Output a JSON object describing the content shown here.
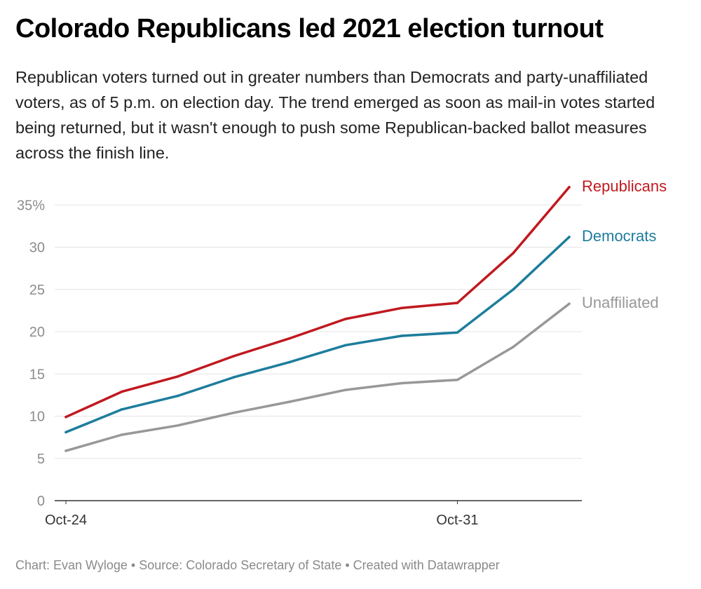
{
  "title": "Colorado Republicans led 2021 election turnout",
  "subtitle": "Republican voters turned out in greater numbers than Democrats and party-unaffiliated voters, as of 5 p.m. on election day. The trend emerged as soon as mail-in votes started being returned, but it wasn't enough to push some Republican-backed ballot measures across the finish line.",
  "footer": "Chart: Evan Wyloge • Source: Colorado Secretary of State • Created with Datawrapper",
  "chart_data": {
    "type": "line",
    "title": "Colorado Republicans led 2021 election turnout",
    "x": [
      "2021-10-24",
      "2021-10-25",
      "2021-10-26",
      "2021-10-27",
      "2021-10-28",
      "2021-10-29",
      "2021-10-30",
      "2021-10-31",
      "2021-11-01",
      "2021-11-02"
    ],
    "x_tick_labels": [
      {
        "x": "2021-10-24",
        "label": "Oct-24"
      },
      {
        "x": "2021-10-31",
        "label": "Oct-31"
      }
    ],
    "y_ticks": [
      0,
      5,
      10,
      15,
      20,
      25,
      30,
      35
    ],
    "y_tick_labels": [
      "0",
      "5",
      "10",
      "15",
      "20",
      "25",
      "30",
      "35%"
    ],
    "ylim": [
      0,
      37
    ],
    "ylabel": "",
    "xlabel": "",
    "grid": true,
    "legend": "direct labels at line ends",
    "series": [
      {
        "name": "Republicans",
        "color": "#c0191f",
        "values": [
          9.9,
          12.9,
          14.7,
          17.1,
          19.2,
          21.5,
          22.8,
          23.4,
          29.3,
          37.1
        ]
      },
      {
        "name": "Democrats",
        "color": "#1d7d9c",
        "values": [
          8.1,
          10.8,
          12.4,
          14.6,
          16.4,
          18.4,
          19.5,
          19.9,
          25.0,
          31.2
        ]
      },
      {
        "name": "Unaffiliated",
        "color": "#989898",
        "values": [
          5.9,
          7.8,
          8.9,
          10.4,
          11.7,
          13.1,
          13.9,
          14.3,
          18.2,
          23.3
        ]
      }
    ]
  }
}
